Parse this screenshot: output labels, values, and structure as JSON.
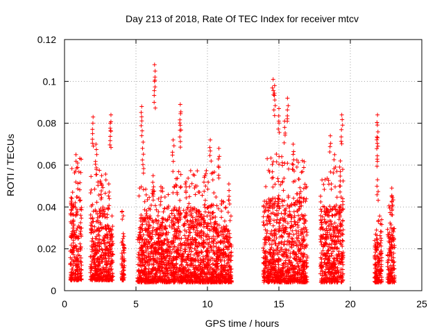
{
  "chart_data": {
    "type": "scatter",
    "title": "Day 213 of 2018, Rate Of TEC Index for receiver mtcv",
    "xlabel": "GPS time / hours",
    "ylabel": "ROTI / TECUs",
    "xlim": [
      0,
      25
    ],
    "ylim": [
      0,
      0.12
    ],
    "xticks": [
      0,
      5,
      10,
      15,
      20,
      25
    ],
    "xtick_labels": [
      "0",
      "5",
      "10",
      "15",
      "20",
      "25"
    ],
    "yticks": [
      0,
      0.02,
      0.04,
      0.06,
      0.08,
      0.1,
      0.12
    ],
    "ytick_labels": [
      "0",
      "0.02",
      "0.04",
      "0.06",
      "0.08",
      "0.1",
      "0.12"
    ],
    "grid": true,
    "marker": "+",
    "color": "#ff0000",
    "series": [
      {
        "name": "ROTI",
        "clusters": [
          {
            "x_start": 0.4,
            "x_end": 1.2,
            "y_min": 0.005,
            "y_max": 0.045,
            "peaks": [
              [
                0.8,
                0.065
              ],
              [
                0.6,
                0.04
              ]
            ]
          },
          {
            "x_start": 1.8,
            "x_end": 2.9,
            "y_min": 0.005,
            "y_max": 0.04,
            "peaks": [
              [
                2.0,
                0.083
              ],
              [
                2.2,
                0.07
              ],
              [
                2.6,
                0.055
              ]
            ]
          },
          {
            "x_start": 2.9,
            "x_end": 3.4,
            "y_min": 0.005,
            "y_max": 0.03,
            "peaks": [
              [
                3.25,
                0.084
              ],
              [
                3.2,
                0.08
              ],
              [
                3.1,
                0.051
              ]
            ]
          },
          {
            "x_start": 4.0,
            "x_end": 4.2,
            "y_min": 0.005,
            "y_max": 0.028,
            "peaks": []
          },
          {
            "x_start": 5.1,
            "x_end": 7.5,
            "y_min": 0.004,
            "y_max": 0.035,
            "peaks": [
              [
                5.4,
                0.088
              ],
              [
                6.3,
                0.108
              ],
              [
                6.3,
                0.1
              ],
              [
                5.5,
                0.071
              ],
              [
                6.2,
                0.055
              ]
            ]
          },
          {
            "x_start": 7.5,
            "x_end": 10.6,
            "y_min": 0.004,
            "y_max": 0.04,
            "peaks": [
              [
                8.1,
                0.089
              ],
              [
                8.1,
                0.079
              ],
              [
                7.6,
                0.072
              ],
              [
                10.2,
                0.072
              ],
              [
                8.5,
                0.052
              ]
            ]
          },
          {
            "x_start": 10.6,
            "x_end": 11.7,
            "y_min": 0.004,
            "y_max": 0.03,
            "peaks": [
              [
                10.8,
                0.068
              ],
              [
                11.5,
                0.051
              ]
            ]
          },
          {
            "x_start": 13.9,
            "x_end": 17.0,
            "y_min": 0.004,
            "y_max": 0.045,
            "peaks": [
              [
                14.6,
                0.101
              ],
              [
                14.7,
                0.098
              ],
              [
                15.6,
                0.092
              ],
              [
                15.0,
                0.087
              ],
              [
                16.0,
                0.07
              ],
              [
                15.4,
                0.081
              ]
            ]
          },
          {
            "x_start": 17.9,
            "x_end": 19.5,
            "y_min": 0.004,
            "y_max": 0.04,
            "peaks": [
              [
                19.4,
                0.084
              ],
              [
                18.6,
                0.074
              ],
              [
                18.9,
                0.065
              ],
              [
                19.3,
                0.062
              ]
            ]
          },
          {
            "x_start": 21.7,
            "x_end": 22.2,
            "y_min": 0.004,
            "y_max": 0.025,
            "peaks": [
              [
                21.9,
                0.084
              ],
              [
                21.9,
                0.073
              ],
              [
                21.9,
                0.053
              ],
              [
                22.1,
                0.032
              ]
            ]
          },
          {
            "x_start": 22.6,
            "x_end": 23.1,
            "y_min": 0.004,
            "y_max": 0.03,
            "peaks": [
              [
                22.9,
                0.049
              ],
              [
                22.9,
                0.045
              ]
            ]
          }
        ]
      }
    ]
  }
}
